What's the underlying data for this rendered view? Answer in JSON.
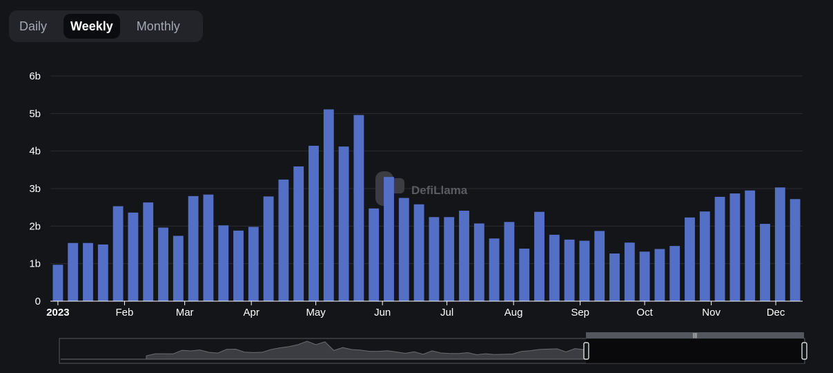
{
  "toggle": {
    "options": [
      "Daily",
      "Weekly",
      "Monthly"
    ],
    "selected": "Weekly"
  },
  "watermark": {
    "text": "DefiLlama",
    "icon": "llama-logo-icon"
  },
  "colors": {
    "bar": "#5470c6",
    "background": "#141519",
    "grid": "#2a2c31",
    "axis": "#ffffff"
  },
  "chart_data": {
    "type": "bar",
    "y_tick_labels": [
      "0",
      "1b",
      "2b",
      "3b",
      "4b",
      "5b",
      "6b"
    ],
    "ylim": [
      0,
      6000000000
    ],
    "x_tick_labels": [
      "2023",
      "Feb",
      "Mar",
      "Apr",
      "May",
      "Jun",
      "Jul",
      "Aug",
      "Sep",
      "Oct",
      "Nov",
      "Dec"
    ],
    "x": [
      "2023-01-01",
      "2023-01-08",
      "2023-01-15",
      "2023-01-22",
      "2023-01-29",
      "2023-02-05",
      "2023-02-12",
      "2023-02-19",
      "2023-02-26",
      "2023-03-05",
      "2023-03-12",
      "2023-03-19",
      "2023-03-26",
      "2023-04-02",
      "2023-04-09",
      "2023-04-16",
      "2023-04-23",
      "2023-04-30",
      "2023-05-07",
      "2023-05-14",
      "2023-05-21",
      "2023-05-28",
      "2023-06-04",
      "2023-06-11",
      "2023-06-18",
      "2023-06-25",
      "2023-07-02",
      "2023-07-09",
      "2023-07-16",
      "2023-07-23",
      "2023-07-30",
      "2023-08-06",
      "2023-08-13",
      "2023-08-20",
      "2023-08-27",
      "2023-09-03",
      "2023-09-10",
      "2023-09-17",
      "2023-09-24",
      "2023-10-01",
      "2023-10-08",
      "2023-10-15",
      "2023-10-22",
      "2023-10-29",
      "2023-11-05",
      "2023-11-12",
      "2023-11-19",
      "2023-11-26",
      "2023-12-03",
      "2023-12-10"
    ],
    "values": [
      970000000,
      1550000000,
      1550000000,
      1510000000,
      2530000000,
      2360000000,
      2630000000,
      1960000000,
      1740000000,
      2800000000,
      2840000000,
      2020000000,
      1880000000,
      1980000000,
      2790000000,
      3240000000,
      3590000000,
      4140000000,
      5110000000,
      4120000000,
      4960000000,
      2470000000,
      3310000000,
      2750000000,
      2580000000,
      2240000000,
      2240000000,
      2410000000,
      2070000000,
      1670000000,
      2110000000,
      1400000000,
      2380000000,
      1770000000,
      1640000000,
      1610000000,
      1870000000,
      1270000000,
      1560000000,
      1320000000,
      1390000000,
      1470000000,
      2230000000,
      2390000000,
      2780000000,
      2870000000,
      2950000000,
      2060000000,
      3030000000,
      2720000000
    ],
    "grid": true,
    "legend": "none",
    "has_zoom_slider": true
  }
}
